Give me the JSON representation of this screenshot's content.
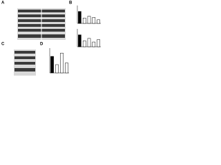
{
  "panels": [
    {
      "label": "A"
    },
    {
      "label": "B",
      "charts": [
        {
          "values": [
            1,
            0.45,
            0.6,
            0.5,
            0.3
          ],
          "ylim": [
            0,
            1.5
          ]
        },
        {
          "values": [
            1,
            0.5,
            0.7,
            0.4,
            0.6
          ],
          "ylim": [
            0,
            1.5
          ]
        }
      ]
    },
    {
      "label": "C"
    },
    {
      "label": "D",
      "chart": {
        "values": [
          1,
          0.5,
          1.2,
          0.6
        ],
        "ylim": [
          0,
          1.5
        ]
      }
    }
  ]
}
